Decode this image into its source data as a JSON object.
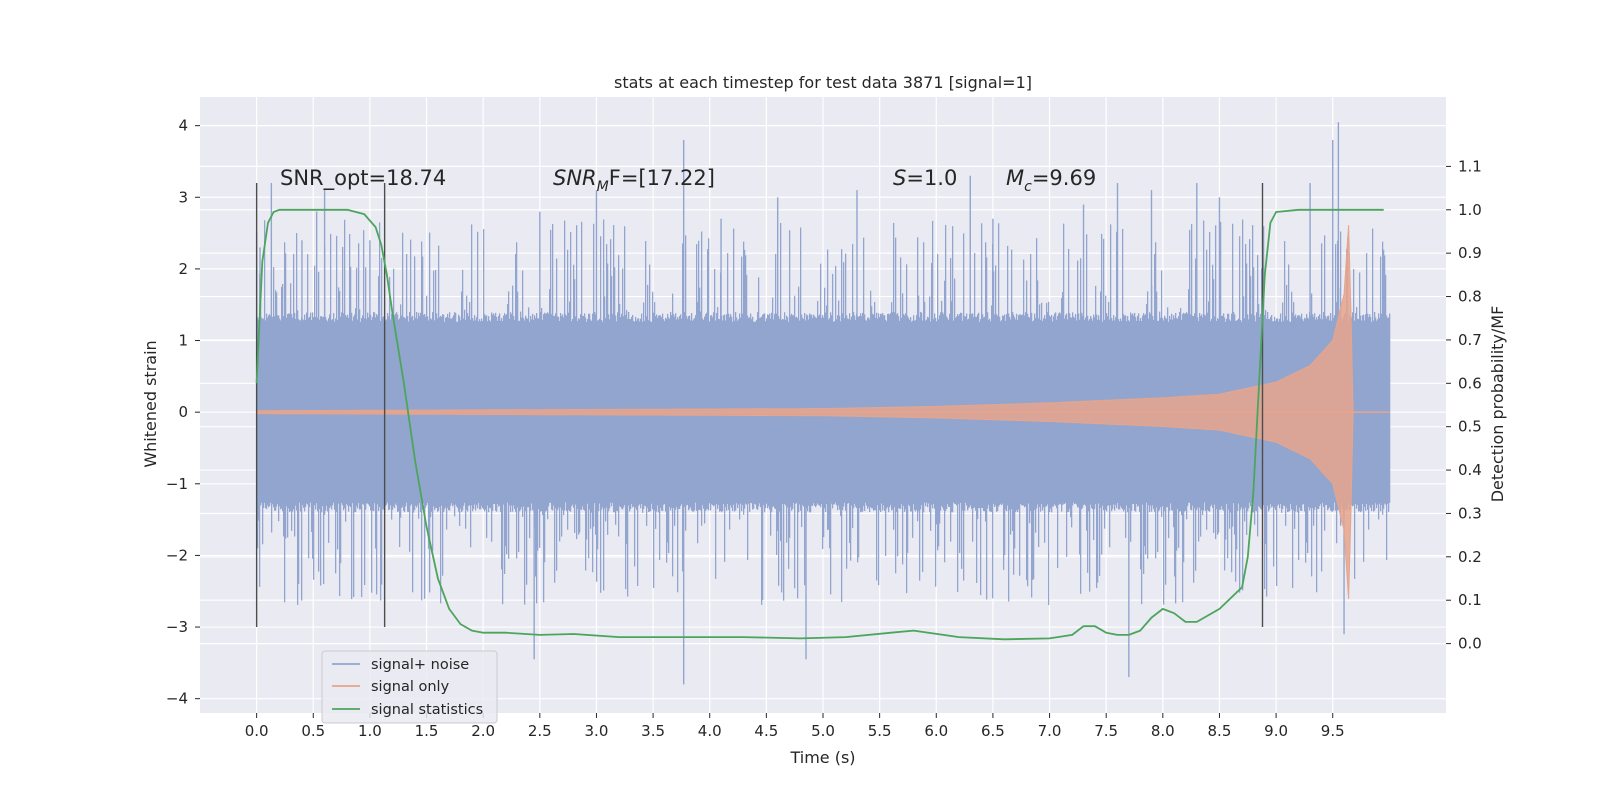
{
  "chart_data": {
    "type": "line",
    "title": "stats at each timestep for test data 3871 [signal=1]",
    "xlabel": "Time (s)",
    "ylabel": "Whitened strain",
    "y2label": "Detection probability/MF",
    "xlim": [
      -0.5,
      10.5
    ],
    "ylim": [
      -4.2,
      4.4
    ],
    "y2lim": [
      -0.16,
      1.26
    ],
    "x_ticks": [
      0.0,
      0.5,
      1.0,
      1.5,
      2.0,
      2.5,
      3.0,
      3.5,
      4.0,
      4.5,
      5.0,
      5.5,
      6.0,
      6.5,
      7.0,
      7.5,
      8.0,
      8.5,
      9.0,
      9.5
    ],
    "x_tick_labels": [
      "0.0",
      "0.5",
      "1.0",
      "1.5",
      "2.0",
      "2.5",
      "3.0",
      "3.5",
      "4.0",
      "4.5",
      "5.0",
      "5.5",
      "6.0",
      "6.5",
      "7.0",
      "7.5",
      "8.0",
      "8.5",
      "9.0",
      "9.5"
    ],
    "y_ticks": [
      4,
      3,
      2,
      1,
      0,
      -1,
      -2,
      -3,
      -4
    ],
    "y_tick_labels": [
      "4",
      "3",
      "2",
      "1",
      "0",
      "−1",
      "−2",
      "−3",
      "−4"
    ],
    "y2_ticks": [
      1.1,
      1.0,
      0.9,
      0.8,
      0.7,
      0.6,
      0.5,
      0.4,
      0.3,
      0.2,
      0.1,
      0.0
    ],
    "y2_tick_labels": [
      "1.1",
      "1.0",
      "0.9",
      "0.8",
      "0.7",
      "0.6",
      "0.5",
      "0.4",
      "0.3",
      "0.2",
      "0.1",
      "0.0"
    ],
    "grid": true,
    "legend_position": "bottom-left",
    "annotations": {
      "snr_opt": "SNR_opt=18.74",
      "snr_mf_main": "SNR",
      "snr_mf_sub": "M",
      "snr_mf_rest": "F=[17.22]",
      "s_var": "S",
      "s_val": "=1.0",
      "mc_var": "M",
      "mc_sub": "c",
      "mc_val": "=9.69"
    },
    "vertical_markers": [
      {
        "x": 0.0,
        "ymin": -3.0,
        "ymax": 3.2
      },
      {
        "x": 1.13,
        "ymin": -3.0,
        "ymax": 3.2
      },
      {
        "x": 8.88,
        "ymin": -3.0,
        "ymax": 3.2
      }
    ],
    "series": [
      {
        "name": "signal+ noise",
        "color": "#92a5cf",
        "axis": "left",
        "x_range": [
          0.0,
          10.0
        ],
        "typical_abs": 1.4,
        "peak_values": [
          [
            0.03,
            2.3
          ],
          [
            0.13,
            3.2
          ],
          [
            0.4,
            2.4
          ],
          [
            0.53,
            2.8
          ],
          [
            0.6,
            3.1
          ],
          [
            1.0,
            2.4
          ],
          [
            2.5,
            2.8
          ],
          [
            3.0,
            3.1
          ],
          [
            3.77,
            3.8
          ],
          [
            3.77,
            -3.8
          ],
          [
            4.1,
            2.7
          ],
          [
            4.6,
            3.0
          ],
          [
            5.3,
            3.1
          ],
          [
            6.3,
            3.3
          ],
          [
            6.5,
            2.7
          ],
          [
            7.3,
            2.9
          ],
          [
            7.6,
            3.2
          ],
          [
            7.7,
            -3.7
          ],
          [
            7.9,
            3.1
          ],
          [
            8.3,
            3.2
          ],
          [
            8.5,
            3.0
          ],
          [
            9.3,
            3.2
          ],
          [
            9.5,
            3.8
          ],
          [
            9.55,
            4.05
          ],
          [
            2.45,
            -3.45
          ],
          [
            4.85,
            -3.45
          ],
          [
            9.6,
            -3.1
          ]
        ]
      },
      {
        "name": "signal only",
        "color": "#e6a58c",
        "axis": "left",
        "x_range": [
          0.0,
          10.0
        ],
        "envelope": [
          [
            0.0,
            0.02
          ],
          [
            5.0,
            0.05
          ],
          [
            6.0,
            0.08
          ],
          [
            7.0,
            0.13
          ],
          [
            8.0,
            0.2
          ],
          [
            8.5,
            0.25
          ],
          [
            9.0,
            0.42
          ],
          [
            9.3,
            0.65
          ],
          [
            9.5,
            1.0
          ],
          [
            9.6,
            1.65
          ],
          [
            9.65,
            2.85
          ],
          [
            9.67,
            0.0
          ]
        ]
      },
      {
        "name": "signal statistics",
        "color": "#4ca55c",
        "axis": "right",
        "x": [
          0.0,
          0.05,
          0.1,
          0.15,
          0.2,
          0.3,
          0.5,
          0.8,
          0.95,
          1.05,
          1.1,
          1.15,
          1.2,
          1.3,
          1.4,
          1.5,
          1.6,
          1.7,
          1.8,
          1.9,
          2.0,
          2.2,
          2.5,
          2.8,
          3.2,
          3.8,
          4.3,
          4.8,
          5.2,
          5.6,
          5.8,
          6.2,
          6.6,
          7.0,
          7.2,
          7.3,
          7.4,
          7.5,
          7.6,
          7.7,
          7.8,
          7.9,
          8.0,
          8.1,
          8.2,
          8.3,
          8.5,
          8.7,
          8.75,
          8.8,
          8.85,
          8.9,
          8.95,
          9.0,
          9.2,
          9.6,
          9.95
        ],
        "values": [
          0.6,
          0.88,
          0.97,
          0.995,
          1.0,
          1.0,
          1.0,
          1.0,
          0.99,
          0.96,
          0.92,
          0.85,
          0.76,
          0.6,
          0.42,
          0.27,
          0.15,
          0.08,
          0.045,
          0.03,
          0.025,
          0.025,
          0.02,
          0.022,
          0.015,
          0.015,
          0.015,
          0.012,
          0.015,
          0.025,
          0.03,
          0.015,
          0.01,
          0.012,
          0.02,
          0.04,
          0.04,
          0.025,
          0.02,
          0.02,
          0.03,
          0.06,
          0.08,
          0.07,
          0.05,
          0.05,
          0.08,
          0.13,
          0.2,
          0.35,
          0.6,
          0.85,
          0.97,
          0.995,
          1.0,
          1.0,
          1.0
        ]
      }
    ]
  }
}
